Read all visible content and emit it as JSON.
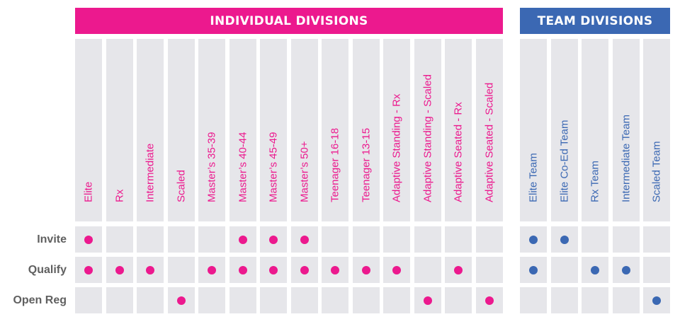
{
  "colors": {
    "individual": "#ec198e",
    "team": "#3b68b3",
    "cell": "#e6e6ea",
    "row_label": "#606060"
  },
  "groups": [
    {
      "id": "individual",
      "title": "INDIVIDUAL DIVISIONS"
    },
    {
      "id": "team",
      "title": "TEAM DIVISIONS"
    }
  ],
  "rows": [
    "Invite",
    "Qualify",
    "Open Reg"
  ],
  "divisions": [
    {
      "name": "Elite",
      "group": "individual",
      "marks": [
        true,
        true,
        false
      ]
    },
    {
      "name": "Rx",
      "group": "individual",
      "marks": [
        false,
        true,
        false
      ]
    },
    {
      "name": "Intermediate",
      "group": "individual",
      "marks": [
        false,
        true,
        false
      ]
    },
    {
      "name": "Scaled",
      "group": "individual",
      "marks": [
        false,
        false,
        true
      ]
    },
    {
      "name": "Master’s 35-39",
      "group": "individual",
      "marks": [
        false,
        true,
        false
      ]
    },
    {
      "name": "Master’s 40-44",
      "group": "individual",
      "marks": [
        true,
        true,
        false
      ]
    },
    {
      "name": "Master’s 45-49",
      "group": "individual",
      "marks": [
        true,
        true,
        false
      ]
    },
    {
      "name": "Master’s 50+",
      "group": "individual",
      "marks": [
        true,
        true,
        false
      ]
    },
    {
      "name": "Teenager 16-18",
      "group": "individual",
      "marks": [
        false,
        true,
        false
      ]
    },
    {
      "name": "Teenager 13-15",
      "group": "individual",
      "marks": [
        false,
        true,
        false
      ]
    },
    {
      "name": "Adaptive Standing - Rx",
      "group": "individual",
      "marks": [
        false,
        true,
        false
      ]
    },
    {
      "name": "Adaptive Standing - Scaled",
      "group": "individual",
      "marks": [
        false,
        false,
        true
      ]
    },
    {
      "name": "Adaptive Seated - Rx",
      "group": "individual",
      "marks": [
        false,
        true,
        false
      ]
    },
    {
      "name": "Adaptive Seated - Scaled",
      "group": "individual",
      "marks": [
        false,
        false,
        true
      ]
    },
    {
      "name": "Elite Team",
      "group": "team",
      "marks": [
        true,
        true,
        false
      ]
    },
    {
      "name": "Elite Co-Ed Team",
      "group": "team",
      "marks": [
        true,
        false,
        false
      ]
    },
    {
      "name": "Rx Team",
      "group": "team",
      "marks": [
        false,
        true,
        false
      ]
    },
    {
      "name": "Intermediate Team",
      "group": "team",
      "marks": [
        false,
        true,
        false
      ]
    },
    {
      "name": "Scaled Team",
      "group": "team",
      "marks": [
        false,
        false,
        true
      ]
    }
  ]
}
